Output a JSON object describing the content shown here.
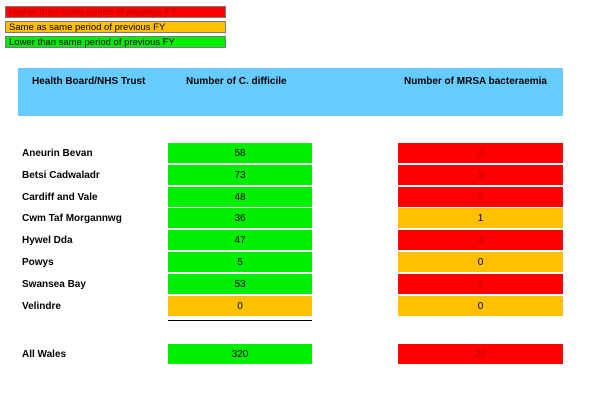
{
  "legend": {
    "higher": "Higher than same period of previous FY",
    "same": "Same as same period of previous FY",
    "lower": "Lower than same period of previous FY"
  },
  "colors": {
    "higher": "#ff0000",
    "same": "#ffc000",
    "lower": "#00ee00",
    "header": "#66ccff"
  },
  "table": {
    "headers": {
      "name": "Health Board/NHS Trust",
      "cdiff": "Number of C. difficile",
      "mrsa": "Number of MRSA bacteraemia"
    },
    "rows": [
      {
        "name": "Aneurin Bevan",
        "cdiff": "58",
        "cdiff_status": "lower",
        "mrsa": "3",
        "mrsa_status": "higher"
      },
      {
        "name": "Betsi Cadwaladr",
        "cdiff": "73",
        "cdiff_status": "lower",
        "mrsa": "5",
        "mrsa_status": "higher"
      },
      {
        "name": "Cardiff and Vale",
        "cdiff": "48",
        "cdiff_status": "lower",
        "mrsa": "5",
        "mrsa_status": "higher"
      },
      {
        "name": "Cwm Taf Morgannwg",
        "cdiff": "36",
        "cdiff_status": "lower",
        "mrsa": "1",
        "mrsa_status": "same"
      },
      {
        "name": "Hywel Dda",
        "cdiff": "47",
        "cdiff_status": "lower",
        "mrsa": "4",
        "mrsa_status": "higher"
      },
      {
        "name": "Powys",
        "cdiff": "5",
        "cdiff_status": "lower",
        "mrsa": "0",
        "mrsa_status": "same"
      },
      {
        "name": "Swansea Bay",
        "cdiff": "53",
        "cdiff_status": "lower",
        "mrsa": "2",
        "mrsa_status": "higher"
      },
      {
        "name": "Velindre",
        "cdiff": "0",
        "cdiff_status": "same",
        "mrsa": "0",
        "mrsa_status": "same"
      }
    ],
    "total": {
      "name": "All Wales",
      "cdiff": "320",
      "cdiff_status": "lower",
      "mrsa": "20",
      "mrsa_status": "higher"
    }
  }
}
